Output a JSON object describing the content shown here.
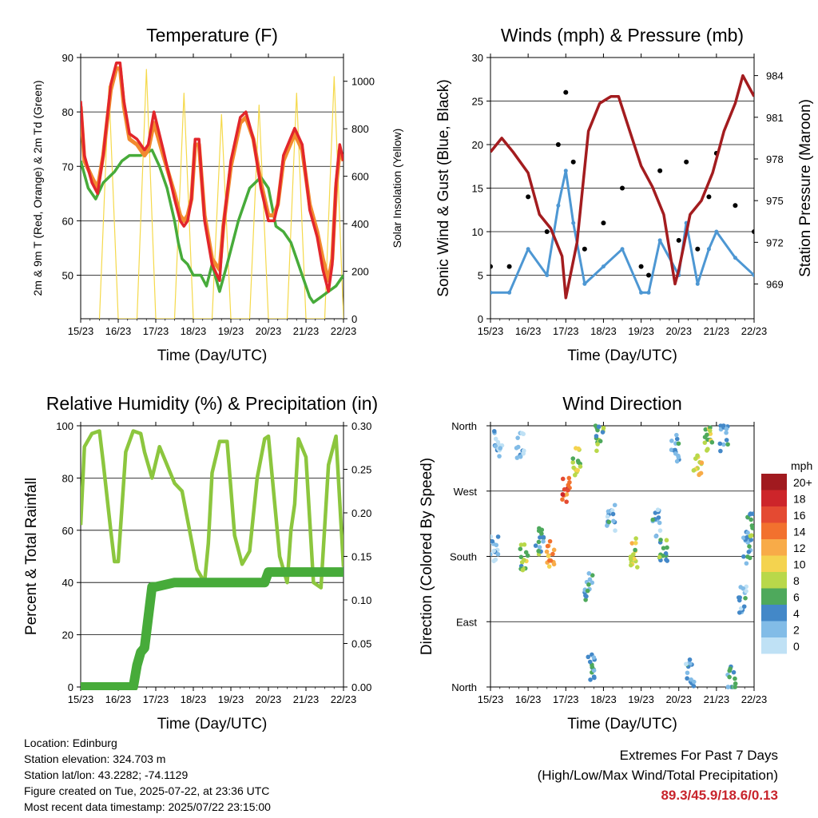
{
  "colors": {
    "t2m": "#e2262b",
    "t9m": "#f28a2e",
    "td2m": "#47ab3a",
    "solar": "#f5d94a",
    "gust": "#000000",
    "wind": "#4d97d3",
    "pressure": "#a31c1f",
    "rh": "#8cc63e",
    "precip": "#47ab3a"
  },
  "info": {
    "location": "Location: Edinburg",
    "elevation": "Station elevation: 324.703 m",
    "latlon": "Station lat/lon: 43.2282; -74.1129",
    "created": "Figure created on Tue, 2025-07-22, at 23:36 UTC",
    "recent": "Most recent data timestamp: 2025/07/22 23:15:00"
  },
  "extremes": {
    "title": "Extremes For Past 7 Days",
    "subtitle": "(High/Low/Max Wind/Total Precipitation)",
    "values": "89.3/45.9/18.6/0.13"
  },
  "chart_data": [
    {
      "type": "line",
      "title": "Temperature (F)",
      "xlabel": "Time (Day/UTC)",
      "ylabel": "2m & 9m T (Red, Orange) & 2m Td (Green)",
      "ylabel_right": "Solar Insolation (Yellow)",
      "x_ticks": [
        "15/23",
        "16/23",
        "17/23",
        "18/23",
        "19/23",
        "20/23",
        "21/23",
        "22/23"
      ],
      "xlim_days": [
        0,
        7
      ],
      "ylim": [
        42,
        90
      ],
      "y_ticks": [
        50,
        60,
        70,
        80,
        90
      ],
      "ylim_right": [
        0,
        1100
      ],
      "y_ticks_right": [
        0,
        200,
        400,
        600,
        800,
        1000
      ],
      "series": [
        {
          "key": "t2m",
          "x": [
            0,
            0.1,
            0.3,
            0.45,
            0.6,
            0.8,
            0.95,
            1.05,
            1.15,
            1.3,
            1.5,
            1.7,
            1.8,
            1.95,
            2.2,
            2.5,
            2.65,
            2.75,
            2.85,
            2.95,
            3.05,
            3.15,
            3.3,
            3.5,
            3.7,
            3.8,
            4.0,
            4.25,
            4.4,
            4.6,
            4.8,
            5.0,
            5.15,
            5.25,
            5.4,
            5.7,
            5.9,
            6.1,
            6.3,
            6.45,
            6.6,
            6.7,
            6.8,
            6.9,
            7.0
          ],
          "y": [
            82,
            72,
            67,
            65,
            72,
            85,
            89,
            89,
            82,
            76,
            75,
            73,
            74,
            80,
            73,
            64,
            60,
            59,
            60,
            64,
            75,
            75,
            60,
            52,
            49,
            59,
            71,
            79,
            80,
            75,
            66,
            60,
            60,
            63,
            72,
            77,
            74,
            62,
            57,
            51,
            47,
            52,
            67,
            74,
            71
          ]
        },
        {
          "key": "t9m",
          "x": [
            0,
            0.1,
            0.3,
            0.45,
            0.6,
            0.8,
            0.95,
            1.05,
            1.15,
            1.3,
            1.5,
            1.7,
            1.8,
            1.95,
            2.2,
            2.5,
            2.65,
            2.75,
            2.85,
            2.95,
            3.05,
            3.15,
            3.3,
            3.5,
            3.7,
            3.8,
            4.0,
            4.25,
            4.4,
            4.6,
            4.8,
            5.0,
            5.15,
            5.25,
            5.4,
            5.7,
            5.9,
            6.1,
            6.3,
            6.45,
            6.6,
            6.7,
            6.8,
            6.9,
            7.0
          ],
          "y": [
            81,
            71,
            68,
            66,
            72,
            84,
            88,
            88,
            81,
            75,
            74,
            72,
            73,
            78,
            72,
            65,
            61,
            60,
            61,
            64,
            74,
            74,
            61,
            53,
            51,
            59,
            70,
            78,
            79,
            75,
            67,
            61,
            61,
            63,
            71,
            76,
            73,
            63,
            58,
            53,
            49,
            53,
            66,
            73,
            71
          ]
        },
        {
          "key": "td2m",
          "x": [
            0,
            0.2,
            0.4,
            0.6,
            0.9,
            1.1,
            1.3,
            1.6,
            1.9,
            2.1,
            2.3,
            2.5,
            2.6,
            2.7,
            2.85,
            3.0,
            3.2,
            3.35,
            3.5,
            3.7,
            3.9,
            4.2,
            4.5,
            4.8,
            5.0,
            5.2,
            5.4,
            5.6,
            5.75,
            5.9,
            6.0,
            6.1,
            6.2,
            6.4,
            6.6,
            6.8,
            7.0
          ],
          "y": [
            71,
            66,
            64,
            67,
            69,
            71,
            72,
            72,
            73,
            70,
            66,
            60,
            56,
            53,
            52,
            50,
            50,
            48,
            52,
            47,
            52,
            60,
            66,
            68,
            66,
            59,
            58,
            56,
            53,
            50,
            48,
            46,
            45,
            46,
            47,
            48,
            50
          ]
        },
        {
          "key": "solar",
          "axis": "right",
          "x": [
            0.5,
            0.75,
            1.0,
            1.25,
            1.5,
            1.75,
            2.0,
            2.25,
            2.5,
            2.75,
            3.0,
            3.25,
            3.5,
            3.75,
            4.0,
            4.25,
            4.5,
            4.75,
            5.0,
            5.25,
            5.5,
            5.75,
            6.0,
            6.25,
            6.5,
            6.75,
            7.0
          ],
          "y": [
            0,
            980,
            0,
            0,
            0,
            1050,
            0,
            0,
            0,
            950,
            0,
            0,
            0,
            860,
            0,
            0,
            0,
            900,
            0,
            0,
            0,
            950,
            0,
            0,
            0,
            1020,
            0
          ]
        }
      ]
    },
    {
      "type": "scatter",
      "title": "Winds (mph) & Pressure (mb)",
      "xlabel": "Time (Day/UTC)",
      "ylabel": "Sonic Wind & Gust (Blue, Black)",
      "ylabel_right": "Station Pressure (Maroon)",
      "x_ticks": [
        "15/23",
        "16/23",
        "17/23",
        "18/23",
        "19/23",
        "20/23",
        "21/23",
        "22/23"
      ],
      "xlim_days": [
        0,
        7
      ],
      "ylim": [
        0,
        30
      ],
      "y_ticks": [
        0,
        5,
        10,
        15,
        20,
        25,
        30
      ],
      "ylim_right": [
        966.5,
        985.3
      ],
      "y_ticks_right": [
        969,
        972,
        975,
        978,
        981,
        984
      ],
      "series": [
        {
          "key": "gust",
          "x": [
            0,
            0.5,
            1.0,
            1.5,
            1.8,
            2.0,
            2.2,
            2.5,
            3.0,
            3.5,
            4.0,
            4.2,
            4.5,
            5.0,
            5.2,
            5.5,
            5.8,
            6.0,
            6.5,
            7.0
          ],
          "y": [
            6,
            6,
            14,
            10,
            20,
            26,
            18,
            8,
            11,
            15,
            6,
            5,
            17,
            9,
            18,
            8,
            14,
            19,
            13,
            10
          ]
        },
        {
          "key": "wind",
          "x": [
            0,
            0.5,
            1.0,
            1.5,
            1.8,
            2.0,
            2.2,
            2.5,
            3.0,
            3.5,
            4.0,
            4.2,
            4.5,
            5.0,
            5.2,
            5.5,
            5.8,
            6.0,
            6.5,
            7.0
          ],
          "y": [
            3,
            3,
            8,
            5,
            13,
            17,
            11,
            4,
            6,
            8,
            3,
            3,
            9,
            5,
            11,
            4,
            8,
            10,
            7,
            5
          ]
        },
        {
          "key": "pressure",
          "axis": "right",
          "x": [
            0,
            0.3,
            0.6,
            1.0,
            1.3,
            1.6,
            1.9,
            2.0,
            2.3,
            2.6,
            2.9,
            3.2,
            3.4,
            3.7,
            4.0,
            4.3,
            4.6,
            4.9,
            5.0,
            5.3,
            5.6,
            5.9,
            6.2,
            6.5,
            6.7,
            6.8,
            6.9,
            7.0
          ],
          "y": [
            978.5,
            979.5,
            978.5,
            977,
            974,
            973,
            971,
            968,
            972,
            980,
            982,
            982.5,
            982.5,
            980,
            977.5,
            976,
            974,
            969,
            970,
            974,
            975,
            977,
            980,
            982,
            984,
            983.5,
            983,
            982.5
          ]
        }
      ]
    },
    {
      "type": "line",
      "title": "Relative Humidity (%) & Precipitation (in)",
      "xlabel": "Time (Day/UTC)",
      "ylabel": "Percent & Total Rainfall",
      "x_ticks": [
        "15/23",
        "16/23",
        "17/23",
        "18/23",
        "19/23",
        "20/23",
        "21/23",
        "22/23"
      ],
      "xlim_days": [
        0,
        7
      ],
      "ylim": [
        0,
        100
      ],
      "y_ticks": [
        0,
        20,
        40,
        60,
        80,
        100
      ],
      "ylim_right": [
        0,
        0.3
      ],
      "y_ticks_right": [
        "0.00",
        "0.05",
        "0.10",
        "0.15",
        "0.20",
        "0.25",
        "0.30"
      ],
      "series": [
        {
          "key": "rh",
          "x": [
            0,
            0.1,
            0.3,
            0.5,
            0.6,
            0.8,
            0.9,
            1.0,
            1.2,
            1.4,
            1.6,
            1.7,
            1.9,
            2.1,
            2.3,
            2.5,
            2.7,
            2.9,
            3.1,
            3.3,
            3.4,
            3.5,
            3.7,
            3.9,
            4.1,
            4.3,
            4.5,
            4.7,
            4.9,
            5.0,
            5.3,
            5.5,
            5.6,
            5.7,
            5.8,
            6.0,
            6.2,
            6.4,
            6.6,
            6.8,
            7.0
          ],
          "y": [
            62,
            92,
            97,
            98,
            86,
            60,
            48,
            48,
            90,
            98,
            97,
            90,
            80,
            92,
            85,
            78,
            75,
            60,
            45,
            40,
            55,
            82,
            94,
            94,
            58,
            47,
            52,
            80,
            95,
            96,
            50,
            40,
            60,
            70,
            95,
            88,
            40,
            38,
            85,
            96,
            46
          ]
        },
        {
          "key": "precip",
          "axis": "right",
          "x": [
            0,
            0.5,
            1.0,
            1.4,
            1.5,
            1.6,
            1.7,
            1.8,
            1.9,
            2.0,
            2.3,
            2.5,
            3.0,
            4.0,
            4.9,
            5.0,
            6.0,
            7.0
          ],
          "y": [
            0,
            0,
            0,
            0,
            0.025,
            0.04,
            0.045,
            0.08,
            0.115,
            0.115,
            0.118,
            0.12,
            0.12,
            0.12,
            0.12,
            0.132,
            0.132,
            0.132
          ]
        }
      ]
    },
    {
      "type": "scatter",
      "title": "Wind Direction",
      "xlabel": "Time (Day/UTC)",
      "ylabel": "Direction (Colored By Speed)",
      "x_ticks": [
        "15/23",
        "16/23",
        "17/23",
        "18/23",
        "19/23",
        "20/23",
        "21/23",
        "22/23"
      ],
      "xlim_days": [
        0,
        7
      ],
      "ylim": [
        0,
        360
      ],
      "y_ticks": [
        "North",
        "East",
        "South",
        "West",
        "North"
      ],
      "y_tick_values": [
        0,
        90,
        180,
        270,
        360
      ],
      "legend_title": "mph",
      "legend": [
        {
          "label": "20+",
          "color": "#a11a1f"
        },
        {
          "label": "18",
          "color": "#cd252a"
        },
        {
          "label": "16",
          "color": "#e44a32"
        },
        {
          "label": "14",
          "color": "#f2712e"
        },
        {
          "label": "12",
          "color": "#f8ab48"
        },
        {
          "label": "10",
          "color": "#f4d34f"
        },
        {
          "label": "8",
          "color": "#b9d84a"
        },
        {
          "label": "6",
          "color": "#4ea95c"
        },
        {
          "label": "4",
          "color": "#4388c8"
        },
        {
          "label": "2",
          "color": "#82bce7"
        },
        {
          "label": "0",
          "color": "#bfe1f5"
        }
      ],
      "clusters": [
        {
          "x": 0.2,
          "y": 335,
          "spd": 3
        },
        {
          "x": 0.1,
          "y": 190,
          "spd": 3
        },
        {
          "x": 0.8,
          "y": 335,
          "spd": 3
        },
        {
          "x": 0.9,
          "y": 180,
          "spd": 8
        },
        {
          "x": 1.3,
          "y": 200,
          "spd": 6
        },
        {
          "x": 1.6,
          "y": 185,
          "spd": 14
        },
        {
          "x": 2.0,
          "y": 270,
          "spd": 16
        },
        {
          "x": 2.3,
          "y": 310,
          "spd": 10
        },
        {
          "x": 2.6,
          "y": 140,
          "spd": 5
        },
        {
          "x": 2.7,
          "y": 30,
          "spd": 6
        },
        {
          "x": 2.9,
          "y": 345,
          "spd": 7
        },
        {
          "x": 3.2,
          "y": 235,
          "spd": 4
        },
        {
          "x": 3.8,
          "y": 185,
          "spd": 10
        },
        {
          "x": 4.4,
          "y": 225,
          "spd": 4
        },
        {
          "x": 4.6,
          "y": 190,
          "spd": 7
        },
        {
          "x": 4.9,
          "y": 330,
          "spd": 4
        },
        {
          "x": 5.3,
          "y": 20,
          "spd": 4
        },
        {
          "x": 5.5,
          "y": 310,
          "spd": 11
        },
        {
          "x": 5.8,
          "y": 340,
          "spd": 9
        },
        {
          "x": 6.2,
          "y": 345,
          "spd": 4
        },
        {
          "x": 6.4,
          "y": 10,
          "spd": 5
        },
        {
          "x": 6.7,
          "y": 120,
          "spd": 4
        },
        {
          "x": 6.8,
          "y": 190,
          "spd": 5
        },
        {
          "x": 6.9,
          "y": 220,
          "spd": 6
        }
      ]
    }
  ]
}
